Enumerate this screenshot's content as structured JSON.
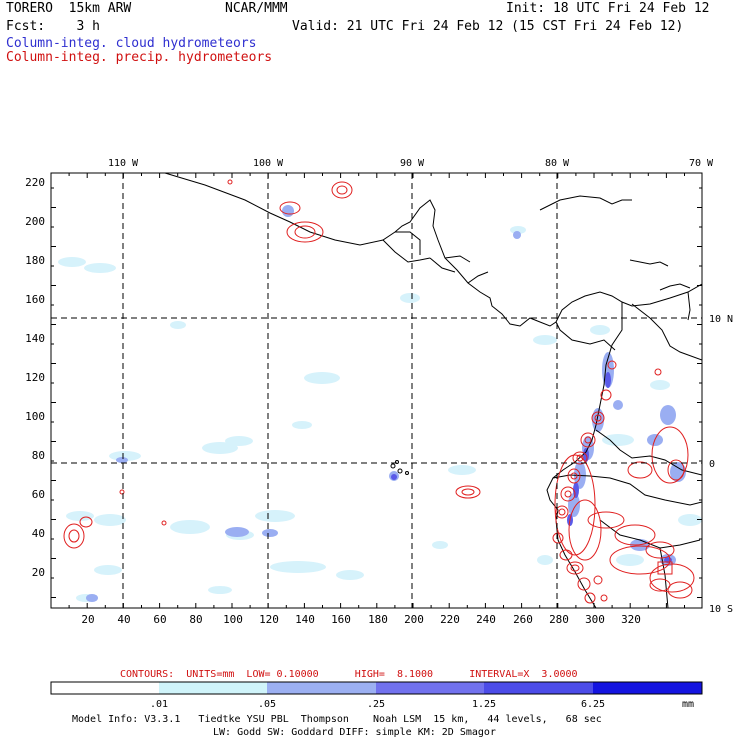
{
  "header": {
    "model": "TORERO  15km ARW",
    "center": "NCAR/MMM",
    "init": "Init: 18 UTC Fri 24 Feb 12",
    "fcst": "Fcst:    3 h",
    "valid": "Valid: 21 UTC Fri 24 Feb 12 (15 CST Fri 24 Feb 12)",
    "field1": "Column-integ. cloud hydrometeors",
    "field2": "Column-integ. precip. hydrometeors"
  },
  "axes": {
    "lon_labels": [
      "110 W",
      "100 W",
      "90 W",
      "80 W",
      "70 W"
    ],
    "lat_labels": [
      "10 N",
      "0",
      "10 S"
    ],
    "x_ticks": [
      "20",
      "40",
      "60",
      "80",
      "100",
      "120",
      "140",
      "160",
      "180",
      "200",
      "220",
      "240",
      "260",
      "280",
      "300",
      "320"
    ],
    "y_ticks": [
      "220",
      "200",
      "180",
      "160",
      "140",
      "120",
      "100",
      "80",
      "60",
      "40",
      "20"
    ]
  },
  "contour_info": {
    "text": "CONTOURS:  UNITS=mm  LOW= 0.10000      HIGH=  8.1000      INTERVAL=X  3.0000"
  },
  "colorbar": {
    "labels": [
      ".01",
      ".05",
      ".25",
      "1.25",
      "6.25"
    ],
    "unit": "mm",
    "colors": [
      "#ffffff",
      "#d0f4fa",
      "#9cb0f2",
      "#7272ee",
      "#4c4ce8",
      "#1414e0"
    ]
  },
  "footer": {
    "line1": "Model Info: V3.3.1   Tiedtke YSU PBL  Thompson    Noah LSM  15 km,   44 levels,   68 sec",
    "line2": "LW: Godd SW: Goddard DIFF: simple KM: 2D Smagor"
  },
  "colors": {
    "coast": "#000000",
    "precip_contour": "#e02020",
    "cloud_light": "#d6f2fb",
    "cloud_mid": "#9aaef2",
    "cloud_dark": "#5a5ae8"
  }
}
